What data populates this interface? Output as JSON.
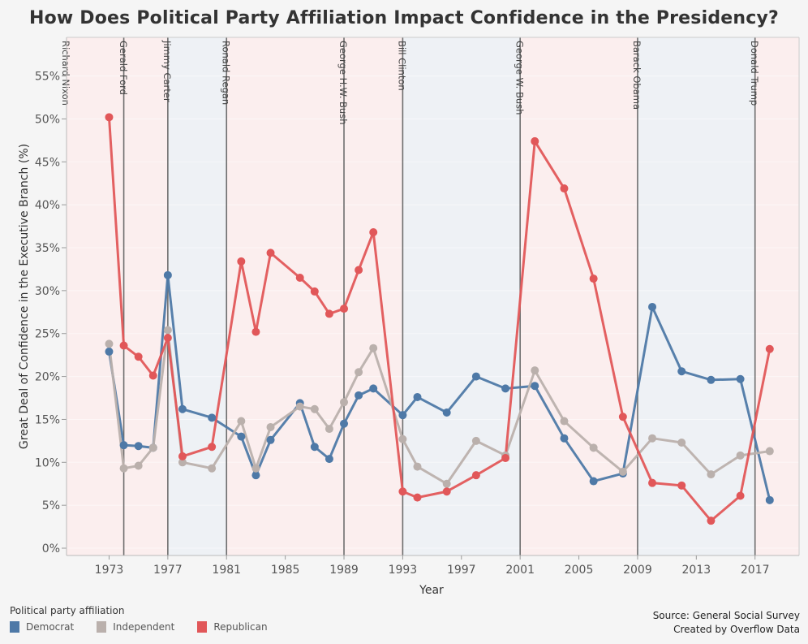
{
  "title": "How Does Political Party Affiliation Impact Confidence in the Presidency?",
  "source": "Source: General Social Survey",
  "credit": "Created by Overflow Data",
  "chart_data": {
    "type": "line",
    "title": "How Does Political Party Affiliation Impact Confidence in the Presidency?",
    "xlabel": "Year",
    "ylabel": "Great Deal of Confidence in the Executive Branch (%)",
    "xlim": [
      1970.1,
      2020
    ],
    "ylim": [
      -0.85,
      59.5
    ],
    "x_ticks": [
      1973,
      1977,
      1981,
      1985,
      1989,
      1993,
      1997,
      2001,
      2005,
      2009,
      2013,
      2017
    ],
    "y_ticks": [
      0,
      5,
      10,
      15,
      20,
      25,
      30,
      35,
      40,
      45,
      50,
      55
    ],
    "y_tick_suffix": "%",
    "grid": "horizontal (faint)",
    "legend_title": "Political party affiliation",
    "legend_position": "bottom-left",
    "x": [
      1973,
      1974,
      1975,
      1976,
      1977,
      1978,
      1980,
      1982,
      1983,
      1984,
      1986,
      1987,
      1988,
      1989,
      1990,
      1991,
      1993,
      1994,
      1996,
      1998,
      2000,
      2002,
      2004,
      2006,
      2008,
      2010,
      2012,
      2014,
      2016,
      2018
    ],
    "series": [
      {
        "name": "Democrat",
        "color": "#4e79a7",
        "values": [
          22.9,
          12.0,
          11.9,
          11.7,
          31.8,
          16.2,
          15.2,
          13.0,
          8.5,
          12.6,
          16.9,
          11.8,
          10.4,
          14.5,
          17.8,
          18.6,
          15.5,
          17.6,
          15.8,
          20.0,
          18.6,
          18.9,
          12.8,
          7.8,
          8.7,
          28.1,
          20.6,
          19.6,
          19.7,
          5.6
        ]
      },
      {
        "name": "Independent",
        "color": "#bab0ac",
        "values": [
          23.8,
          9.3,
          9.6,
          11.7,
          25.4,
          10.0,
          9.3,
          14.8,
          9.3,
          14.1,
          16.5,
          16.2,
          13.9,
          17.0,
          20.5,
          23.3,
          12.7,
          9.5,
          7.5,
          12.5,
          10.8,
          20.7,
          14.8,
          11.7,
          8.9,
          12.8,
          12.3,
          8.6,
          10.8,
          11.3
        ]
      },
      {
        "name": "Republican",
        "color": "#e15759",
        "values": [
          50.2,
          23.6,
          22.3,
          20.1,
          24.5,
          10.7,
          11.8,
          33.4,
          25.2,
          34.4,
          31.5,
          29.9,
          27.3,
          27.9,
          32.4,
          36.8,
          6.6,
          5.9,
          6.6,
          8.5,
          10.5,
          47.4,
          41.9,
          31.4,
          15.3,
          7.6,
          7.3,
          3.2,
          6.1,
          23.2
        ]
      }
    ],
    "presidencies": [
      {
        "name": "Richard Nixon",
        "start": null,
        "party": "Republican"
      },
      {
        "name": "Gerald Ford",
        "start": 1974,
        "party": "Republican"
      },
      {
        "name": "Jimmy Carter",
        "start": 1977,
        "party": "Democrat"
      },
      {
        "name": "Ronald Regan",
        "start": 1981,
        "party": "Republican"
      },
      {
        "name": "George H.W. Bush",
        "start": 1989,
        "party": "Republican"
      },
      {
        "name": "Bill Clinton",
        "start": 1993,
        "party": "Democrat"
      },
      {
        "name": "George W. Bush",
        "start": 2001,
        "party": "Republican"
      },
      {
        "name": "Barack Obama",
        "start": 2009,
        "party": "Democrat"
      },
      {
        "name": "Donald Trump",
        "start": 2017,
        "party": "Republican"
      }
    ],
    "band_colors": {
      "Republican": "#fbeeee",
      "Democrat": "#eef1f5"
    }
  }
}
